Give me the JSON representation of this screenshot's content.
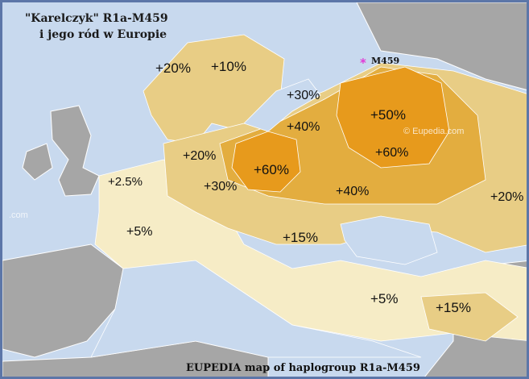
{
  "map": {
    "title_line1": "\"Karelczyk\" R1a-M459",
    "title_line2": "i jego ród w Europie",
    "caption": "EUPEDIA map of haplogroup R1a-M459",
    "watermark_1": "© Eupedia.com",
    "watermark_2": ".com",
    "marker_label": "M459",
    "marker_symbol": "*",
    "colors": {
      "sea": "#c8d9ee",
      "land_none": "#a6a6a6",
      "low": "#f6ecc6",
      "mid": "#e8cd85",
      "high": "#e3ad3f",
      "peak": "#e79a1c",
      "marker": "#e23ad6",
      "frame": "#5c76a8"
    }
  },
  "labels": {
    "norway": "+20%",
    "sweden": "+10%",
    "baltic": "+30%",
    "belarus": "+40%",
    "russia_north": "+50%",
    "russia_central": "+60%",
    "germany": "+20%",
    "poland": "+60%",
    "czech": "+30%",
    "ukraine": "+40%",
    "caucasus_east": "+20%",
    "france_north": "+2.5%",
    "france_south": "+5%",
    "balkans": "+15%",
    "anatolia": "+5%",
    "caucasus_south": "+15%"
  }
}
